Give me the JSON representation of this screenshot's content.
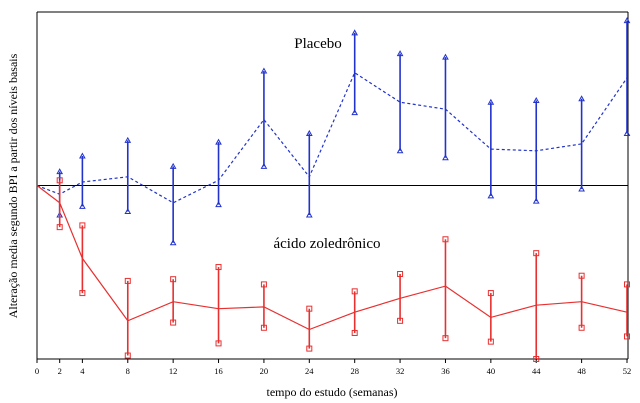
{
  "chart_data": {
    "type": "line",
    "title": "",
    "xlabel": "tempo do estudo (semanas)",
    "ylabel": "Alteração media segundo BPI a partir dos níveis basais",
    "x_ticks": [
      0,
      2,
      4,
      8,
      12,
      16,
      20,
      24,
      28,
      32,
      36,
      40,
      44,
      48,
      52
    ],
    "ylim": [
      -1.0,
      1.0
    ],
    "y_ticks_shown": false,
    "reference_line_y": 0,
    "series": [
      {
        "name": "Placebo",
        "color": "#2233cc",
        "line_style": "dashed",
        "marker": "triangle",
        "x": [
          0,
          2,
          4,
          8,
          12,
          16,
          20,
          24,
          28,
          32,
          36,
          40,
          44,
          48,
          52
        ],
        "mean": [
          0.0,
          -0.05,
          0.02,
          0.05,
          -0.1,
          0.03,
          0.38,
          0.05,
          0.65,
          0.48,
          0.44,
          0.21,
          0.2,
          0.24,
          0.62
        ],
        "lower": [
          0.0,
          -0.17,
          -0.12,
          -0.15,
          -0.33,
          -0.11,
          0.11,
          -0.17,
          0.42,
          0.2,
          0.16,
          -0.06,
          -0.09,
          -0.02,
          0.3
        ],
        "upper": [
          0.0,
          0.08,
          0.17,
          0.26,
          0.11,
          0.25,
          0.66,
          0.3,
          0.88,
          0.76,
          0.74,
          0.48,
          0.49,
          0.5,
          0.95
        ]
      },
      {
        "name": "ácido zoledrônico",
        "color": "#e83030",
        "line_style": "solid",
        "marker": "square",
        "x": [
          0,
          2,
          4,
          8,
          12,
          16,
          20,
          24,
          28,
          32,
          36,
          40,
          44,
          48,
          52
        ],
        "mean": [
          0.0,
          -0.1,
          -0.42,
          -0.78,
          -0.67,
          -0.71,
          -0.7,
          -0.83,
          -0.73,
          -0.65,
          -0.58,
          -0.76,
          -0.69,
          -0.67,
          -0.73
        ],
        "lower": [
          0.0,
          -0.24,
          -0.62,
          -0.98,
          -0.79,
          -0.91,
          -0.82,
          -0.94,
          -0.85,
          -0.78,
          -0.88,
          -0.9,
          -1.0,
          -0.82,
          -0.87
        ],
        "upper": [
          0.0,
          0.03,
          -0.23,
          -0.55,
          -0.54,
          -0.47,
          -0.57,
          -0.71,
          -0.61,
          -0.51,
          -0.31,
          -0.62,
          -0.39,
          -0.52,
          -0.57
        ]
      }
    ]
  }
}
